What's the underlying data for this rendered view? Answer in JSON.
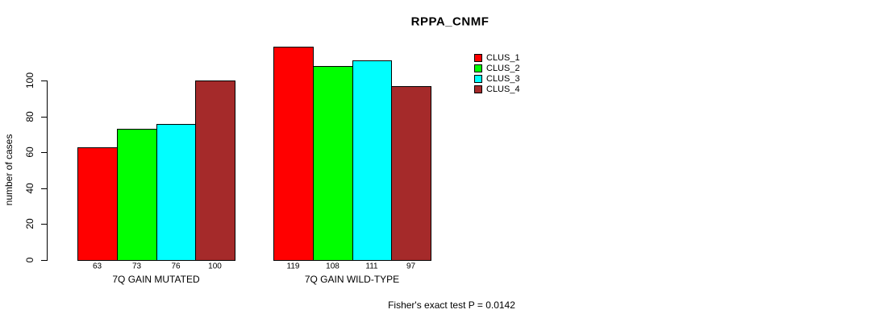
{
  "chart": {
    "background_color": "#ffffff",
    "axis_color": "#000000",
    "text_color": "#000000"
  },
  "chart_data": {
    "type": "bar",
    "title": "RPPA_CNMF",
    "xlabel": "",
    "ylabel": "number of cases",
    "categories": [
      "7Q GAIN MUTATED",
      "7Q GAIN WILD-TYPE"
    ],
    "series": [
      {
        "name": "CLUS_1",
        "color": "#ff0000",
        "values": [
          63,
          119
        ]
      },
      {
        "name": "CLUS_2",
        "color": "#00ff00",
        "values": [
          73,
          108
        ]
      },
      {
        "name": "CLUS_3",
        "color": "#00ffff",
        "values": [
          76,
          111
        ]
      },
      {
        "name": "CLUS_4",
        "color": "#a52a2a",
        "values": [
          100,
          97
        ]
      }
    ],
    "bar_value_labels_shown": true,
    "yticks": [
      0,
      20,
      40,
      60,
      80,
      100
    ],
    "ylim": [
      0,
      100
    ],
    "grid": false,
    "legend_position": "top-right",
    "legend_entries": [
      "CLUS_1",
      "CLUS_2",
      "CLUS_3",
      "CLUS_4"
    ],
    "annotation": "Fisher's exact test P = 0.0142"
  }
}
